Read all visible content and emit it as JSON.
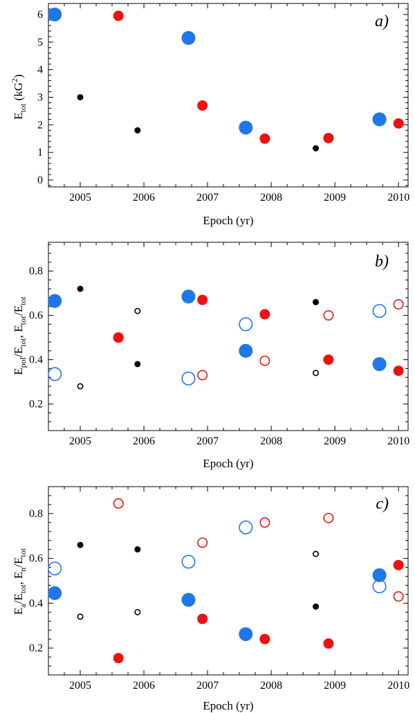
{
  "chart_data": [
    {
      "type": "scatter",
      "panel_label": "a)",
      "xlabel": "Epoch (yr)",
      "ylabel_main": "E",
      "ylabel_sub": "tot",
      "ylabel_unit": " (kG",
      "ylabel_sup": "2",
      "ylabel_close": ")",
      "xlim": [
        2004.5,
        2010.15
      ],
      "ylim": [
        -0.25,
        6.4
      ],
      "xticks": [
        "2005",
        "2006",
        "2007",
        "2008",
        "2009",
        "2010"
      ],
      "yticks": [
        "0",
        "1",
        "2",
        "3",
        "4",
        "5",
        "6"
      ],
      "series": [
        {
          "name": "black-filled",
          "color": "#000000",
          "filled": true,
          "size": "small",
          "points": [
            [
              2005.0,
              3.0
            ],
            [
              2005.9,
              1.8
            ],
            [
              2008.7,
              1.15
            ]
          ]
        },
        {
          "name": "blue-filled",
          "color": "#1f77e8",
          "filled": true,
          "size": "large",
          "points": [
            [
              2004.6,
              6.0
            ],
            [
              2006.7,
              5.15
            ],
            [
              2007.6,
              1.9
            ],
            [
              2009.7,
              2.2
            ]
          ]
        },
        {
          "name": "red-filled",
          "color": "#ee1111",
          "filled": true,
          "size": "medium",
          "points": [
            [
              2005.6,
              5.95
            ],
            [
              2006.92,
              2.7
            ],
            [
              2007.9,
              1.5
            ],
            [
              2008.9,
              1.52
            ],
            [
              2010.0,
              2.05
            ]
          ]
        }
      ]
    },
    {
      "type": "scatter",
      "panel_label": "b)",
      "xlabel": "Epoch (yr)",
      "ylabel_main": "E",
      "ylabel_sub": "pol",
      "ylabel_mid": "/E",
      "ylabel_sub2": "tot",
      "ylabel_mid2": ", E",
      "ylabel_sub3": "tor",
      "ylabel_mid3": "/E",
      "ylabel_sub4": "tot",
      "xlim": [
        2004.5,
        2010.15
      ],
      "ylim": [
        0.08,
        0.93
      ],
      "xticks": [
        "2005",
        "2006",
        "2007",
        "2008",
        "2009",
        "2010"
      ],
      "yticks": [
        "0.2",
        "0.4",
        "0.6",
        "0.8"
      ],
      "series": [
        {
          "name": "black-filled",
          "color": "#000000",
          "filled": true,
          "size": "small",
          "points": [
            [
              2005.0,
              0.72
            ],
            [
              2005.9,
              0.38
            ],
            [
              2008.7,
              0.66
            ]
          ]
        },
        {
          "name": "black-open",
          "color": "#000000",
          "filled": false,
          "size": "small",
          "points": [
            [
              2005.0,
              0.28
            ],
            [
              2005.9,
              0.62
            ],
            [
              2008.7,
              0.34
            ]
          ]
        },
        {
          "name": "blue-filled",
          "color": "#1f77e8",
          "filled": true,
          "size": "large",
          "points": [
            [
              2004.6,
              0.665
            ],
            [
              2006.7,
              0.685
            ],
            [
              2007.6,
              0.44
            ],
            [
              2009.7,
              0.38
            ]
          ]
        },
        {
          "name": "blue-open",
          "color": "#1f77e8",
          "filled": false,
          "size": "large",
          "points": [
            [
              2004.6,
              0.335
            ],
            [
              2006.7,
              0.315
            ],
            [
              2007.6,
              0.56
            ],
            [
              2009.7,
              0.62
            ]
          ]
        },
        {
          "name": "red-filled",
          "color": "#ee1111",
          "filled": true,
          "size": "medium",
          "points": [
            [
              2005.6,
              0.5
            ],
            [
              2006.92,
              0.67
            ],
            [
              2007.9,
              0.605
            ],
            [
              2008.9,
              0.4
            ],
            [
              2010.0,
              0.35
            ]
          ]
        },
        {
          "name": "red-open",
          "color": "#ee1111",
          "filled": false,
          "size": "medium",
          "points": [
            [
              2005.6,
              0.5
            ],
            [
              2006.92,
              0.33
            ],
            [
              2007.9,
              0.395
            ],
            [
              2008.9,
              0.6
            ],
            [
              2010.0,
              0.65
            ]
          ]
        }
      ]
    },
    {
      "type": "scatter",
      "panel_label": "c)",
      "xlabel": "Epoch (yr)",
      "ylabel_main": "E",
      "ylabel_sub": "a",
      "ylabel_mid": "/E",
      "ylabel_sub2": "tot",
      "ylabel_mid2": ", E",
      "ylabel_sub3": "n",
      "ylabel_mid3": "/E",
      "ylabel_sub4": "tot",
      "xlim": [
        2004.5,
        2010.15
      ],
      "ylim": [
        0.08,
        0.92
      ],
      "xticks": [
        "2005",
        "2006",
        "2007",
        "2008",
        "2009",
        "2010"
      ],
      "yticks": [
        "0.2",
        "0.4",
        "0.6",
        "0.8"
      ],
      "series": [
        {
          "name": "black-filled",
          "color": "#000000",
          "filled": true,
          "size": "small",
          "points": [
            [
              2005.0,
              0.66
            ],
            [
              2005.9,
              0.64
            ],
            [
              2008.7,
              0.385
            ]
          ]
        },
        {
          "name": "black-open",
          "color": "#000000",
          "filled": false,
          "size": "small",
          "points": [
            [
              2005.0,
              0.34
            ],
            [
              2005.9,
              0.36
            ],
            [
              2008.7,
              0.62
            ]
          ]
        },
        {
          "name": "blue-filled",
          "color": "#1f77e8",
          "filled": true,
          "size": "large",
          "points": [
            [
              2004.6,
              0.445
            ],
            [
              2006.7,
              0.415
            ],
            [
              2007.6,
              0.262
            ],
            [
              2009.7,
              0.525
            ]
          ]
        },
        {
          "name": "blue-open",
          "color": "#1f77e8",
          "filled": false,
          "size": "large",
          "points": [
            [
              2004.6,
              0.555
            ],
            [
              2006.7,
              0.585
            ],
            [
              2007.6,
              0.738
            ],
            [
              2009.7,
              0.475
            ]
          ]
        },
        {
          "name": "red-filled",
          "color": "#ee1111",
          "filled": true,
          "size": "medium",
          "points": [
            [
              2005.6,
              0.155
            ],
            [
              2006.92,
              0.33
            ],
            [
              2007.9,
              0.24
            ],
            [
              2008.9,
              0.22
            ],
            [
              2010.0,
              0.57
            ]
          ]
        },
        {
          "name": "red-open",
          "color": "#ee1111",
          "filled": false,
          "size": "medium",
          "points": [
            [
              2005.6,
              0.845
            ],
            [
              2006.92,
              0.67
            ],
            [
              2007.9,
              0.76
            ],
            [
              2008.9,
              0.78
            ],
            [
              2010.0,
              0.43
            ]
          ]
        }
      ]
    }
  ]
}
